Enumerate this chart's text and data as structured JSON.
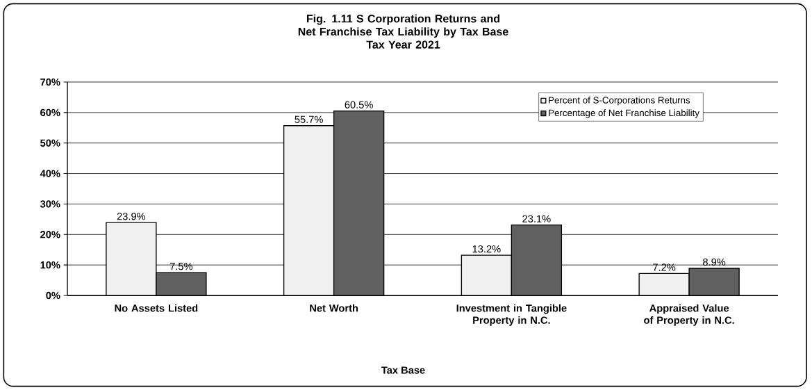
{
  "chart_data": {
    "type": "bar",
    "title": "Fig. 1.11  S Corporation Returns and Net Franchise Tax Liability by Tax Base",
    "subtitle": "Tax Year 2021",
    "xlabel": "Tax Base",
    "categories": [
      "No Assets Listed",
      "Net Worth",
      "Investment in Tangible Property in N.C.",
      "Appraised Value of Property in N.C."
    ],
    "series": [
      {
        "name": "Percent of S-Corporations Returns",
        "color": "#f0f0f0",
        "values": [
          23.9,
          55.7,
          13.2,
          7.2
        ],
        "value_labels": [
          "23.9%",
          "55.7%",
          "13.2%",
          "7.2%"
        ]
      },
      {
        "name": "Percentage of Net Franchise Liability",
        "color": "#606060",
        "values": [
          7.5,
          60.5,
          23.1,
          8.9
        ],
        "value_labels": [
          "7.5%",
          "60.5%",
          "23.1%",
          "8.9%"
        ]
      }
    ],
    "ylim": [
      0,
      70
    ],
    "yticks": [
      {
        "value": 0,
        "label": "0%"
      },
      {
        "value": 10,
        "label": "10%"
      },
      {
        "value": 20,
        "label": "20%"
      },
      {
        "value": 30,
        "label": "30%"
      },
      {
        "value": 40,
        "label": "40%"
      },
      {
        "value": 50,
        "label": "50%"
      },
      {
        "value": 60,
        "label": "60%"
      },
      {
        "value": 70,
        "label": "70%"
      }
    ],
    "grid": "y",
    "legend": "top right"
  }
}
